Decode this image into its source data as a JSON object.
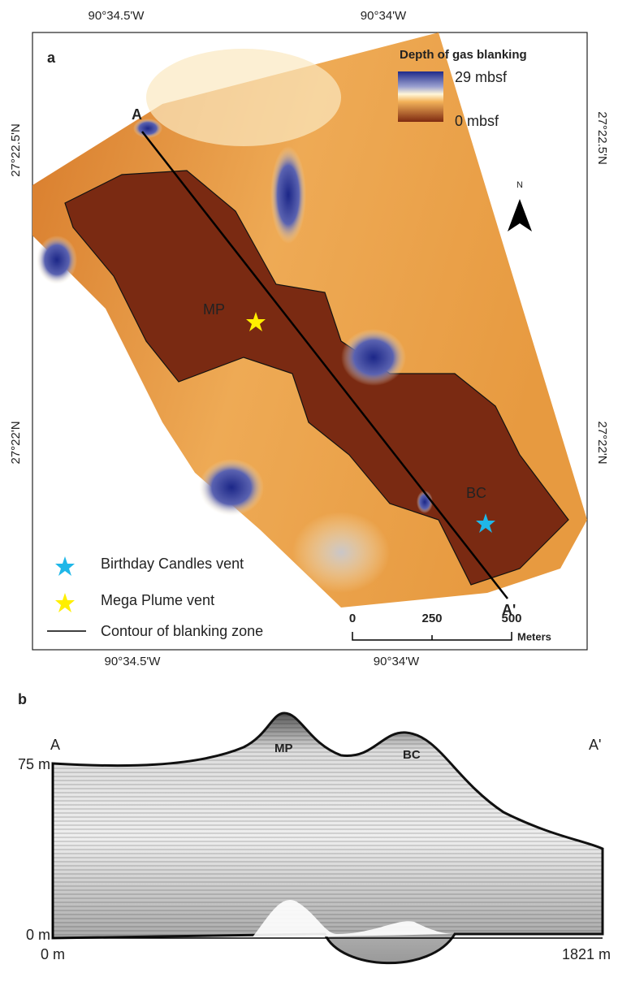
{
  "panel_a": {
    "label": "a",
    "legend": {
      "title": "Depth of gas blanking",
      "max": "29 mbsf",
      "min": "0 mbsf",
      "entries": [
        "Birthday Candles vent",
        "Mega Plume vent",
        "Contour of blanking zone"
      ]
    },
    "top_ticks": [
      "90°34.5'W",
      "90°34'W"
    ],
    "bottom_ticks": [
      "90°34.5'W",
      "90°34'W"
    ],
    "left_ticks": [
      "27°22.5'N",
      "27°22'N"
    ],
    "right_ticks": [
      "27°22.5'N",
      "27°22'N"
    ],
    "transect": [
      "A",
      "A'"
    ],
    "sites": [
      "MP",
      "BC"
    ],
    "north": "N",
    "scale_bar": {
      "labels": [
        "0",
        "250",
        "500"
      ],
      "unit": "Meters"
    }
  },
  "panel_b": {
    "label": "b",
    "ends": [
      "A",
      "A'"
    ],
    "y_labels": [
      "75 m",
      "0 m"
    ],
    "x_labels": [
      "0 m",
      "1821 m"
    ],
    "sites": [
      "MP",
      "BC"
    ]
  }
}
